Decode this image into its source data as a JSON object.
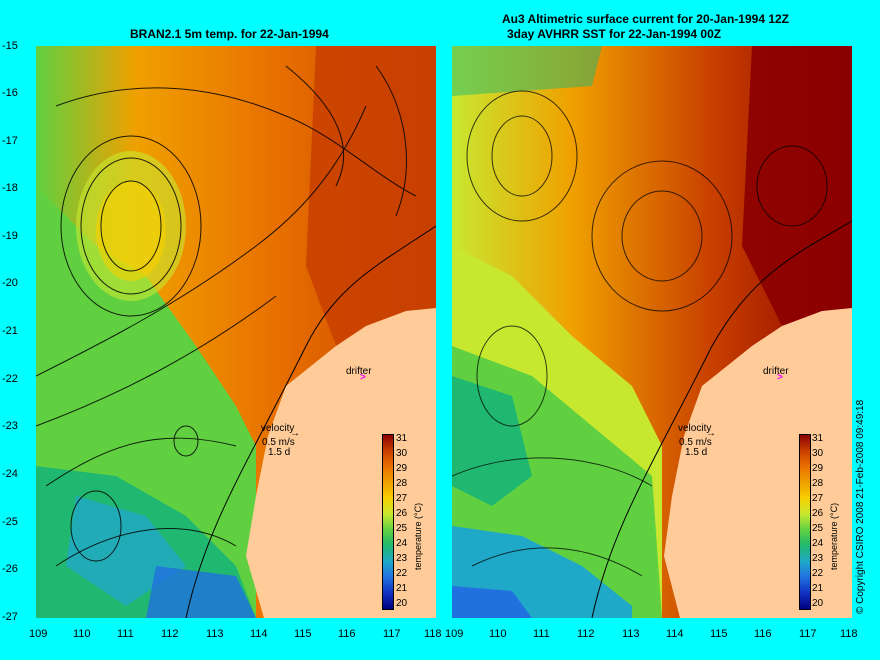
{
  "left_panel": {
    "title": "BRAN2.1 5m temp. for 22-Jan-1994"
  },
  "right_panel": {
    "title_line1": "Au3 Altimetric surface current for 20-Jan-1994 12Z",
    "title_line2": "3day AVHRR SST for 22-Jan-1994 00Z"
  },
  "axes": {
    "y_ticks": [
      "-15",
      "-16",
      "-17",
      "-18",
      "-19",
      "-20",
      "-21",
      "-22",
      "-23",
      "-24",
      "-25",
      "-26",
      "-27"
    ],
    "x_ticks": [
      "109",
      "110",
      "111",
      "112",
      "113",
      "114",
      "115",
      "116",
      "117",
      "118"
    ]
  },
  "legend": {
    "colorbar_values": [
      "31",
      "30",
      "29",
      "28",
      "27",
      "26",
      "25",
      "24",
      "23",
      "22",
      "21",
      "20"
    ],
    "colorbar_title": "temperature (°C)",
    "colors": [
      "#8b0000",
      "#c84000",
      "#e87000",
      "#f0a000",
      "#f8d000",
      "#c8e830",
      "#60d040",
      "#20b870",
      "#20a8c8",
      "#2070e0",
      "#1030c0",
      "#000080"
    ]
  },
  "annotations": {
    "drifter_label": "drifter",
    "velocity_label": "velocity",
    "velocity_scale": "0.5 m/s",
    "velocity_duration": "1.5 d"
  },
  "footer": {
    "copyright": "© Copyright CSIRO 2008   21-Feb-2008 09:49:18"
  },
  "colors": {
    "background": "#00ffff",
    "land": "#ffcc99",
    "drifter_marker": "#ff00ff"
  }
}
